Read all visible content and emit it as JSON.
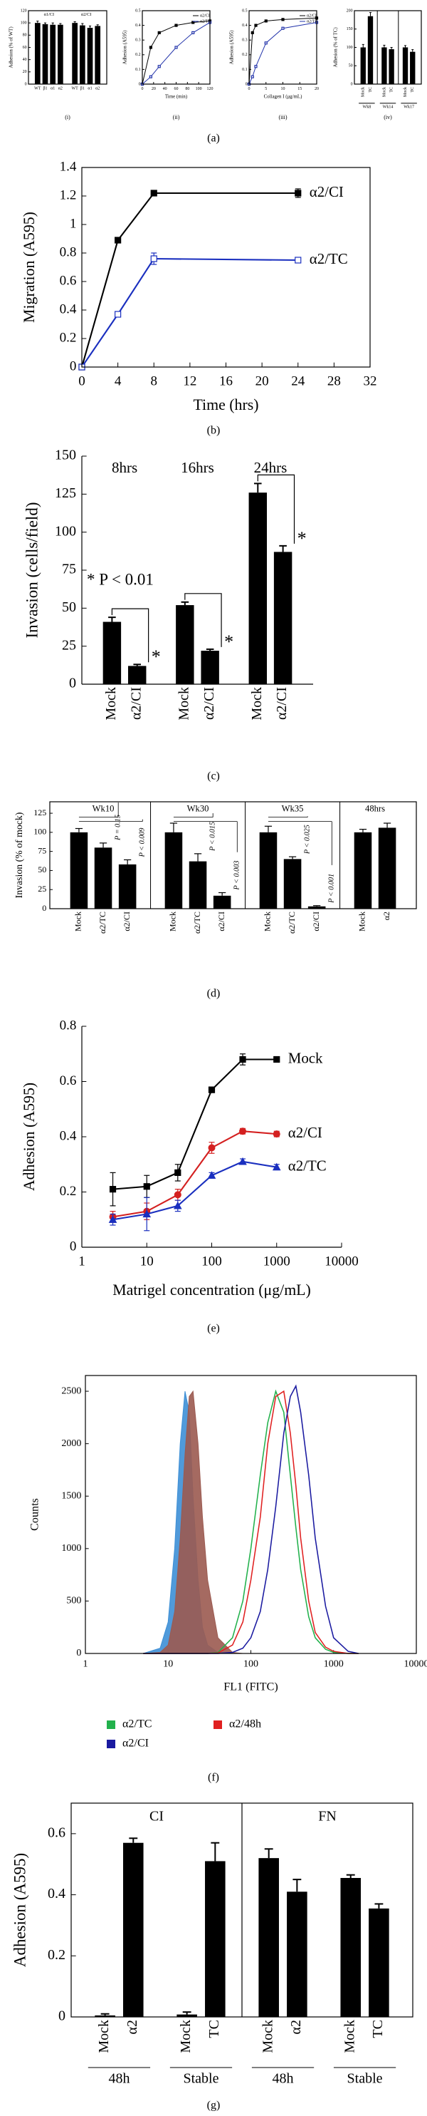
{
  "chart_data": [
    {
      "type": "bar",
      "caption": "(a)",
      "subcaption": "(i)",
      "ylabel": "Adhesion (% of WT)",
      "ylim": [
        0,
        120
      ],
      "yticks": [
        0,
        20,
        40,
        60,
        80,
        100,
        120
      ],
      "frame": "box",
      "group_label_pos": "top",
      "color": "#000000",
      "groups": [
        {
          "label": "α1/CI",
          "categories": [
            "WT",
            "β1",
            "α1",
            "α2"
          ],
          "values": [
            100,
            98,
            97,
            97
          ],
          "errors": [
            3,
            2,
            3,
            2
          ]
        },
        {
          "label": "α2/CI",
          "categories": [
            "WT",
            "β1",
            "α1",
            "α2"
          ],
          "values": [
            100,
            96,
            92,
            95
          ],
          "errors": [
            2,
            3,
            3,
            2
          ]
        }
      ]
    },
    {
      "type": "line",
      "subcaption": "(ii)",
      "xlabel": "Time (min)",
      "ylabel": "Adhesion (A595)",
      "xlim": [
        0,
        120
      ],
      "xticks": [
        0,
        20,
        40,
        60,
        80,
        100,
        120
      ],
      "ylim": [
        0,
        0.5
      ],
      "yticks": [
        0,
        0.1,
        0.2,
        0.3,
        0.4,
        0.5
      ],
      "frame": "box",
      "legend": "inset",
      "x": [
        0,
        15,
        30,
        60,
        90,
        120
      ],
      "series": [
        {
          "name": "α2/CI",
          "color": "#000000",
          "marker": "square",
          "values": [
            0,
            0.25,
            0.35,
            0.4,
            0.42,
            0.43
          ]
        },
        {
          "name": "α2/TC",
          "color": "#2233aa",
          "marker": "open-square",
          "values": [
            0,
            0.05,
            0.12,
            0.25,
            0.35,
            0.42
          ]
        }
      ]
    },
    {
      "type": "line",
      "subcaption": "(iii)",
      "xlabel": "Collagen I (μg/mL)",
      "ylabel": "Adhesion (A595)",
      "xlim": [
        0,
        20
      ],
      "xticks": [
        0,
        5,
        10,
        15,
        20
      ],
      "ylim": [
        0,
        0.5
      ],
      "yticks": [
        0,
        0.1,
        0.2,
        0.3,
        0.4,
        0.5
      ],
      "frame": "box",
      "legend": "inset",
      "x": [
        0,
        1,
        2,
        5,
        10,
        20
      ],
      "series": [
        {
          "name": "α2/CI",
          "color": "#000000",
          "marker": "square",
          "values": [
            0,
            0.35,
            0.4,
            0.43,
            0.44,
            0.45
          ]
        },
        {
          "name": "α2/TC",
          "color": "#2233aa",
          "marker": "open-square",
          "values": [
            0,
            0.05,
            0.12,
            0.28,
            0.38,
            0.42
          ]
        }
      ]
    },
    {
      "type": "bar",
      "subcaption": "(iv)",
      "ylabel": "Adhesion (% of TC)",
      "ylim": [
        0,
        200
      ],
      "yticks": [
        0,
        50,
        100,
        150,
        200
      ],
      "frame": "box",
      "group_label_pos": "bottom",
      "group_dividers": true,
      "color": "#000000",
      "groups": [
        {
          "label": "Wk8",
          "categories": [
            "Mock",
            "TC"
          ],
          "values": [
            100,
            185
          ],
          "errors": [
            8,
            10
          ]
        },
        {
          "label": "Wk14",
          "categories": [
            "Mock",
            "TC"
          ],
          "values": [
            100,
            95
          ],
          "errors": [
            6,
            5
          ]
        },
        {
          "label": "Wk17",
          "categories": [
            "Mock",
            "TC"
          ],
          "values": [
            100,
            88
          ],
          "errors": [
            5,
            6
          ]
        }
      ]
    },
    {
      "type": "line",
      "caption": "(b)",
      "xlabel": "Time (hrs)",
      "ylabel": "Migration (A595)",
      "xlim": [
        0,
        32
      ],
      "xticks": [
        0,
        4,
        8,
        12,
        16,
        20,
        24,
        28,
        32
      ],
      "ylim": [
        0,
        1.4
      ],
      "yticks": [
        0,
        0.2,
        0.4,
        0.6,
        0.8,
        1,
        1.2,
        1.4
      ],
      "frame": "box",
      "legend": "end",
      "x": [
        0,
        4,
        8,
        24
      ],
      "series": [
        {
          "name": "α2/CI",
          "color": "#000000",
          "marker": "square",
          "values": [
            0,
            0.89,
            1.22,
            1.22
          ],
          "errors": [
            0,
            0.01,
            0.01,
            0.03
          ]
        },
        {
          "name": "α2/TC",
          "color": "#1a2fbf",
          "marker": "open-square",
          "values": [
            0,
            0.37,
            0.76,
            0.75
          ],
          "errors": [
            0,
            0.01,
            0.04,
            0.01
          ]
        }
      ]
    },
    {
      "type": "bar",
      "caption": "(c)",
      "ylabel": "Invasion (cells/field)",
      "ylim": [
        0,
        150
      ],
      "yticks": [
        0,
        25,
        50,
        75,
        100,
        125,
        150
      ],
      "frame": "axes",
      "group_label_pos": "top",
      "color": "#000000",
      "annotations": [
        "* P < 0.01"
      ],
      "groups": [
        {
          "label": "8hrs",
          "categories": [
            "Mock",
            "α2/CI"
          ],
          "values": [
            41,
            12
          ],
          "errors": [
            3,
            1
          ],
          "marks": [
            "*"
          ]
        },
        {
          "label": "16hrs",
          "categories": [
            "Mock",
            "α2/CI"
          ],
          "values": [
            52,
            22
          ],
          "errors": [
            2,
            1
          ],
          "marks": [
            "*"
          ]
        },
        {
          "label": "24hrs",
          "categories": [
            "Mock",
            "α2/CI"
          ],
          "values": [
            126,
            87
          ],
          "errors": [
            6,
            4
          ],
          "marks": [
            "*"
          ]
        }
      ]
    },
    {
      "type": "bar",
      "caption": "(d)",
      "ylabel": "Invasion (% of mock)",
      "ylim": [
        0,
        140
      ],
      "yticks": [
        0,
        25,
        50,
        75,
        100,
        125
      ],
      "frame": "box",
      "group_label_pos": "top",
      "group_dividers": true,
      "color": "#000000",
      "groups": [
        {
          "label": "Wk10",
          "categories": [
            "Mock",
            "α2/TC",
            "α2/CI"
          ],
          "values": [
            100,
            80,
            58
          ],
          "errors": [
            5,
            6,
            6
          ],
          "p_labels": [
            "P = 0.15",
            "P < 0.009"
          ]
        },
        {
          "label": "Wk30",
          "categories": [
            "Mock",
            "α2/TC",
            "α2/CI"
          ],
          "values": [
            100,
            62,
            17
          ],
          "errors": [
            12,
            10,
            4
          ],
          "p_labels": [
            "P < 0.015",
            "P < 0.003"
          ]
        },
        {
          "label": "Wk35",
          "categories": [
            "Mock",
            "α2/TC",
            "α2/CI"
          ],
          "values": [
            100,
            65,
            3
          ],
          "errors": [
            8,
            3,
            1
          ],
          "p_labels": [
            "P < 0.025",
            "P < 0.001"
          ]
        },
        {
          "label": "48hrs",
          "categories": [
            "Mock",
            "α2"
          ],
          "values": [
            100,
            106
          ],
          "errors": [
            4,
            6
          ]
        }
      ]
    },
    {
      "type": "line",
      "caption": "(e)",
      "xlabel": "Matrigel concentration (μg/mL)",
      "ylabel": "Adhesion (A595)",
      "xlog": true,
      "xlim": [
        1,
        10000
      ],
      "xticks": [
        1,
        10,
        100,
        1000,
        10000
      ],
      "ylim": [
        0,
        0.8
      ],
      "yticks": [
        0,
        0.2,
        0.4,
        0.6,
        0.8
      ],
      "frame": "axes",
      "legend": "end",
      "x": [
        3,
        10,
        30,
        100,
        300,
        1000
      ],
      "series": [
        {
          "name": "Mock",
          "color": "#000000",
          "marker": "square",
          "values": [
            0.21,
            0.22,
            0.27,
            0.57,
            0.68,
            0.68
          ],
          "errors": [
            0.06,
            0.04,
            0.03,
            0.01,
            0.02,
            0.01
          ]
        },
        {
          "name": "α2/CI",
          "color": "#d42020",
          "marker": "circle",
          "values": [
            0.11,
            0.13,
            0.19,
            0.36,
            0.42,
            0.41
          ],
          "errors": [
            0.02,
            0.03,
            0.02,
            0.02,
            0.01,
            0.01
          ]
        },
        {
          "name": "α2/TC",
          "color": "#1a2fbf",
          "marker": "triangle",
          "values": [
            0.1,
            0.12,
            0.15,
            0.26,
            0.31,
            0.29
          ],
          "errors": [
            0.02,
            0.06,
            0.02,
            0.01,
            0.01,
            0.01
          ]
        }
      ]
    },
    {
      "type": "line",
      "caption": "(f)",
      "xlabel": "FL1 (FITC)",
      "ylabel": "Counts",
      "xlog": true,
      "xlim": [
        1,
        10000
      ],
      "xticks": [
        1,
        10,
        100,
        1000,
        10000
      ],
      "ylim": [
        0,
        2650
      ],
      "yticks": [
        0,
        500,
        1000,
        1500,
        2000,
        2500
      ],
      "frame": "box",
      "legend": "below",
      "x": [
        5,
        8,
        10,
        12,
        14,
        16,
        18,
        20,
        23,
        26,
        30,
        40,
        60,
        80,
        100,
        130,
        160,
        200,
        250,
        300,
        350,
        400,
        500,
        600,
        800,
        1000,
        1500,
        2000
      ],
      "series": [
        {
          "color": "#3d8fd6",
          "fill": true,
          "values": [
            0,
            50,
            300,
            1000,
            2000,
            2500,
            2300,
            1500,
            700,
            250,
            80,
            10,
            0,
            0,
            0,
            0,
            0,
            0,
            0,
            0,
            0,
            0,
            0,
            0,
            0,
            0,
            0,
            0
          ]
        },
        {
          "color": "#9b5a50",
          "fill": true,
          "values": [
            0,
            10,
            80,
            400,
            1100,
            1900,
            2450,
            2500,
            2000,
            1300,
            700,
            150,
            10,
            0,
            0,
            0,
            0,
            0,
            0,
            0,
            0,
            0,
            0,
            0,
            0,
            0,
            0,
            0
          ]
        },
        {
          "name": "α2/TC",
          "color": "#22b14c",
          "values": [
            0,
            0,
            0,
            0,
            0,
            0,
            0,
            0,
            0,
            0,
            0,
            10,
            150,
            500,
            1000,
            1700,
            2200,
            2500,
            2300,
            1700,
            1200,
            800,
            350,
            150,
            40,
            10,
            0,
            0
          ]
        },
        {
          "name": "α2/48h",
          "color": "#e02020",
          "values": [
            0,
            0,
            0,
            0,
            0,
            0,
            0,
            0,
            0,
            0,
            0,
            5,
            80,
            300,
            700,
            1300,
            2000,
            2450,
            2500,
            2100,
            1600,
            1100,
            500,
            200,
            60,
            20,
            0,
            0
          ]
        },
        {
          "name": "α2/CI",
          "color": "#1a1aa0",
          "values": [
            0,
            0,
            0,
            0,
            0,
            0,
            0,
            0,
            0,
            0,
            0,
            0,
            10,
            50,
            150,
            400,
            800,
            1400,
            2100,
            2450,
            2550,
            2300,
            1700,
            1100,
            450,
            150,
            20,
            0
          ]
        }
      ]
    },
    {
      "type": "bar",
      "caption": "(g)",
      "ylabel": "Adhesion (A595)",
      "ylim": [
        0,
        0.7
      ],
      "yticks": [
        0,
        0.2,
        0.4,
        0.6
      ],
      "frame": "box",
      "group_label_pos": "bottom",
      "color": "#000000",
      "panels": [
        "CI",
        "FN"
      ],
      "groups": [
        {
          "label": "48h",
          "categories": [
            "Mock",
            "α2"
          ],
          "values": [
            0.005,
            0.57
          ],
          "errors": [
            0.005,
            0.015
          ]
        },
        {
          "label": "Stable",
          "categories": [
            "Mock",
            "TC"
          ],
          "values": [
            0.008,
            0.51
          ],
          "errors": [
            0.008,
            0.06
          ]
        },
        {
          "label": "48h",
          "categories": [
            "Mock",
            "α2"
          ],
          "values": [
            0.52,
            0.41
          ],
          "errors": [
            0.03,
            0.04
          ]
        },
        {
          "label": "Stable",
          "categories": [
            "Mock",
            "TC"
          ],
          "values": [
            0.455,
            0.355
          ],
          "errors": [
            0.01,
            0.015
          ]
        }
      ]
    }
  ]
}
